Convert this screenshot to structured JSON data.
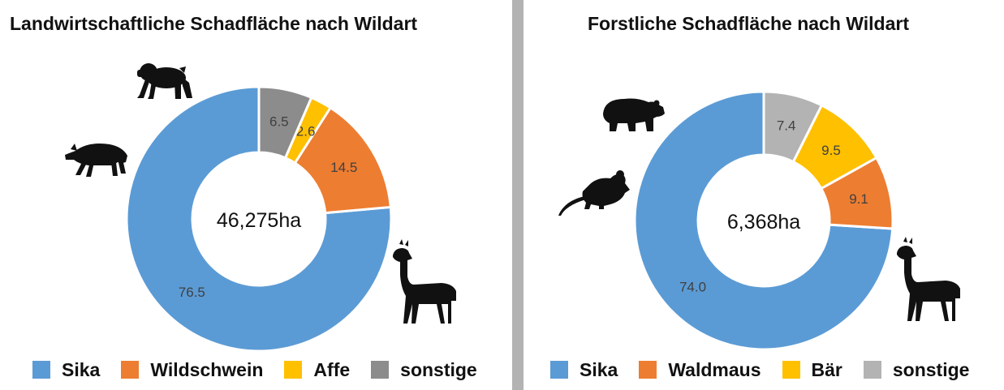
{
  "chart_data": [
    {
      "type": "pie",
      "title": "Landwirtschaftliche Schadfläche nach Wildart",
      "center_label": "46,275ha",
      "categories": [
        "Sika",
        "Wildschwein",
        "Affe",
        "sonstige"
      ],
      "values": [
        76.5,
        14.5,
        2.6,
        6.5
      ],
      "value_labels": [
        "76.5",
        "14.5",
        "2.6",
        "6.5"
      ],
      "colors": [
        "#5b9bd5",
        "#ed7d31",
        "#ffc000",
        "#8c8c8c"
      ],
      "legend": "bottom",
      "icons": [
        "monkey-icon",
        "wild-boar-icon",
        "deer-icon"
      ]
    },
    {
      "type": "pie",
      "title": "Forstliche Schadfläche nach Wildart",
      "center_label": "6,368ha",
      "categories": [
        "Sika",
        "Waldmaus",
        "Bär",
        "sonstige"
      ],
      "values": [
        74.0,
        9.1,
        9.5,
        7.4
      ],
      "value_labels": [
        "74.0",
        "9.1",
        "9.5",
        "7.4"
      ],
      "colors": [
        "#5b9bd5",
        "#ed7d31",
        "#ffc000",
        "#b3b3b3"
      ],
      "legend": "bottom",
      "icons": [
        "bear-icon",
        "mouse-icon",
        "deer-icon"
      ]
    }
  ]
}
